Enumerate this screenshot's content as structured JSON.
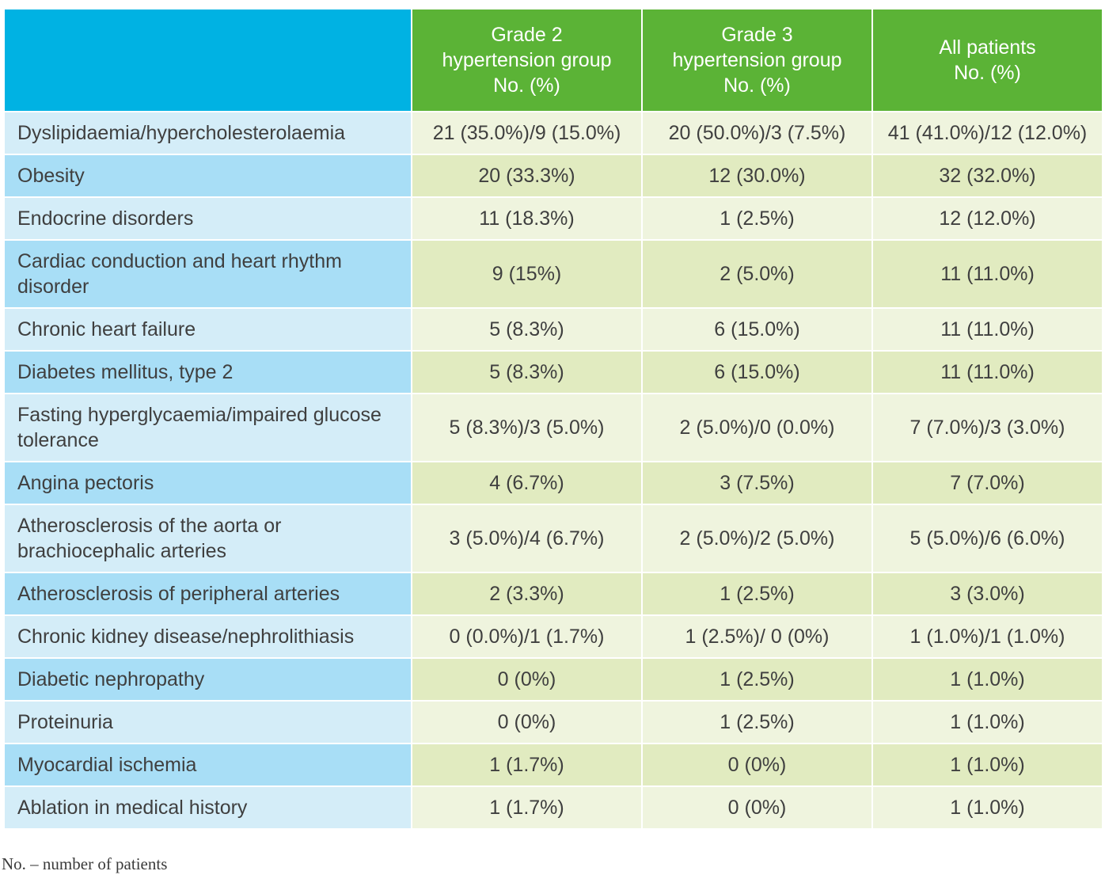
{
  "header": {
    "columns": [
      [
        "Grade 2",
        "hypertension group",
        "No. (%)"
      ],
      [
        "Grade 3",
        "hypertension group",
        "No. (%)"
      ],
      [
        "All patients",
        "No. (%)"
      ]
    ]
  },
  "rows": [
    {
      "label": "Dyslipidaemia/hypercholesterolaemia",
      "g2": "21 (35.0%)/9 (15.0%)",
      "g3": "20 (50.0%)/3 (7.5%)",
      "all": "41 (41.0%)/12 (12.0%)"
    },
    {
      "label": "Obesity",
      "g2": "20 (33.3%)",
      "g3": "12 (30.0%)",
      "all": "32 (32.0%)"
    },
    {
      "label": "Endocrine disorders",
      "g2": "11 (18.3%)",
      "g3": "1 (2.5%)",
      "all": "12 (12.0%)"
    },
    {
      "label": "Cardiac conduction and heart rhythm disorder",
      "g2": "9 (15%)",
      "g3": "2 (5.0%)",
      "all": "11 (11.0%)"
    },
    {
      "label": "Chronic heart failure",
      "g2": "5 (8.3%)",
      "g3": "6 (15.0%)",
      "all": "11 (11.0%)"
    },
    {
      "label": "Diabetes mellitus, type 2",
      "g2": "5 (8.3%)",
      "g3": "6 (15.0%)",
      "all": "11 (11.0%)"
    },
    {
      "label": "Fasting hyperglycaemia/impaired glucose tolerance",
      "g2": "5 (8.3%)/3 (5.0%)",
      "g3": "2 (5.0%)/0 (0.0%)",
      "all": "7 (7.0%)/3 (3.0%)"
    },
    {
      "label": "Angina pectoris",
      "g2": "4 (6.7%)",
      "g3": "3 (7.5%)",
      "all": "7 (7.0%)"
    },
    {
      "label": "Atherosclerosis of the aorta or brachiocephalic arteries",
      "g2": "3 (5.0%)/4 (6.7%)",
      "g3": "2 (5.0%)/2 (5.0%)",
      "all": "5 (5.0%)/6 (6.0%)"
    },
    {
      "label": "Atherosclerosis of peripheral arteries",
      "g2": "2 (3.3%)",
      "g3": "1 (2.5%)",
      "all": "3 (3.0%)"
    },
    {
      "label": "Chronic kidney disease/nephrolithiasis",
      "g2": "0 (0.0%)/1 (1.7%)",
      "g3": "1 (2.5%)/ 0 (0%)",
      "all": "1 (1.0%)/1 (1.0%)"
    },
    {
      "label": "Diabetic nephropathy",
      "g2": "0 (0%)",
      "g3": "1 (2.5%)",
      "all": "1 (1.0%)"
    },
    {
      "label": "Proteinuria",
      "g2": "0 (0%)",
      "g3": "1 (2.5%)",
      "all": "1 (1.0%)"
    },
    {
      "label": "Myocardial ischemia",
      "g2": "1 (1.7%)",
      "g3": "0 (0%)",
      "all": "1 (1.0%)"
    },
    {
      "label": "Ablation in medical history",
      "g2": "1 (1.7%)",
      "g3": "0 (0%)",
      "all": "1 (1.0%)"
    }
  ],
  "footnote": "No. – number of patients",
  "colors": {
    "header_blank": "#00b2e3",
    "header_green": "#5bb336",
    "label_light": "#d4edf8",
    "label_dark": "#a8def6",
    "cell_light": "#eff4de",
    "cell_dark": "#e1ebc0"
  }
}
